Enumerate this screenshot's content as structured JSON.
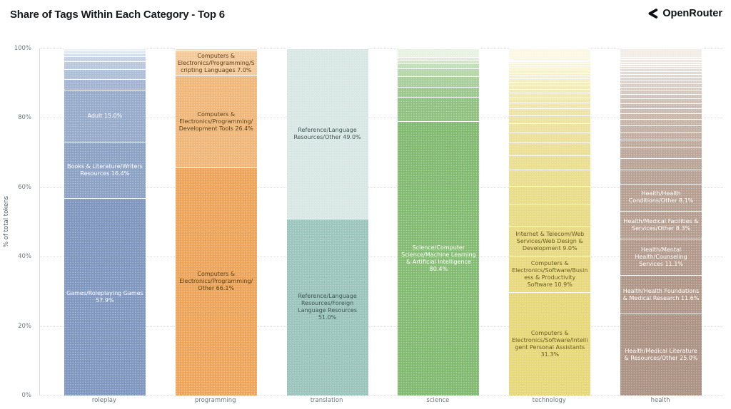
{
  "header": {
    "title": "Share of Tags Within Each Category - Top 6",
    "brand": "OpenRouter"
  },
  "chart_data": {
    "type": "bar",
    "stacked": true,
    "orientation": "vertical",
    "title": "Share of Tags Within Each Category - Top 6",
    "xlabel": "",
    "ylabel": "% of total tokens",
    "ylim": [
      0,
      100
    ],
    "grid": "horizontal dotted at 20% intervals",
    "legend_position": "none (labels drawn inside segments)",
    "yticks": [
      {
        "label": "0%",
        "value": 0
      },
      {
        "label": "20%",
        "value": 20
      },
      {
        "label": "40%",
        "value": 40
      },
      {
        "label": "60%",
        "value": 60
      },
      {
        "label": "80%",
        "value": 80
      },
      {
        "label": "100%",
        "value": 100
      }
    ],
    "categories": [
      "roleplay",
      "programming",
      "translation",
      "science",
      "technology",
      "health"
    ],
    "bars": [
      {
        "category": "roleplay",
        "base_color": "#8098BF",
        "top_color": "#E9EFF7",
        "label_text_color": "#FFFFFF",
        "segments_bottom_to_top": [
          {
            "label": "Games/Roleplaying Games",
            "value": 57.9,
            "display": "Games/Roleplaying Games 57.9%"
          },
          {
            "label": "Books & Literature/Writers Resources",
            "value": 16.4,
            "display": "Books & Literature/Writers Resources 16.4%"
          },
          {
            "label": "Adult",
            "value": 15.0,
            "display": "Adult 15.0%"
          },
          {
            "value": 3.0
          },
          {
            "value": 2.7
          },
          {
            "value": 2.0
          },
          {
            "value": 1.4
          },
          {
            "value": 0.6
          },
          {
            "value": 0.5
          },
          {
            "value": 0.5
          }
        ]
      },
      {
        "category": "programming",
        "base_color": "#EDA55C",
        "top_color": "#F7DBB9",
        "label_text_color": "#5C4318",
        "segments_bottom_to_top": [
          {
            "label": "Computers & Electronics/Programming/Other",
            "value": 66.1,
            "display": "Computers & Electronics/Programming/Other 66.1%"
          },
          {
            "label": "Computers & Electronics/Programming/Development Tools",
            "value": 26.4,
            "display": "Computers & Electronics/Programming/Development Tools 26.4%"
          },
          {
            "label": "Computers & Electronics/Programming/Scripting Languages",
            "value": 7.0,
            "display": "Computers & Electronics/Programming/Scripting Languages 7.0%"
          },
          {
            "value": 0.5
          }
        ]
      },
      {
        "category": "translation",
        "base_color": "#9CC5BD",
        "top_color": "#D9E8E5",
        "label_text_color": "#3E5753",
        "segments_bottom_to_top": [
          {
            "label": "Reference/Language Resources/Foreign Language Resources",
            "value": 51.0,
            "display": "Reference/Language Resources/Foreign Language Resources 51.0%"
          },
          {
            "label": "Reference/Language Resources/Other",
            "value": 49.0,
            "display": "Reference/Language Resources/Other 49.0%"
          }
        ]
      },
      {
        "category": "science",
        "base_color": "#83BA72",
        "top_color": "#E8F2E3",
        "label_text_color": "#FFFFFF",
        "segments_bottom_to_top": [
          {
            "label": "Science/Computer Science/Machine Learning & Artificial Intelligence",
            "value": 80.4,
            "display": "Science/Computer Science/Machine Learning & Artificial Intelligence 80.4%"
          },
          {
            "value": 6.8
          },
          {
            "value": 2.7
          },
          {
            "value": 2.9
          },
          {
            "value": 2.2
          },
          {
            "value": 1.3
          },
          {
            "value": 0.7
          },
          {
            "value": 0.7
          },
          {
            "value": 2.3
          }
        ]
      },
      {
        "category": "technology",
        "base_color": "#E7D87A",
        "top_color": "#FBF8E6",
        "label_text_color": "#6A5D20",
        "segments_bottom_to_top": [
          {
            "label": "Computers & Electronics/Software/Intelligent Personal Assistants",
            "value": 31.3,
            "display": "Computers & Electronics/Software/Intelligent Personal Assistants 31.3%"
          },
          {
            "label": "Computers & Electronics/Software/Business & Productivity Software",
            "value": 10.9,
            "display": "Computers & Electronics/Software/Business & Productivity Software 10.9%"
          },
          {
            "label": "Internet & Telecom/Web Services/Web Design & Development",
            "value": 9.0,
            "display": "Internet & Telecom/Web Services/Web Design & Development 9.0%"
          },
          {
            "value": 6.3
          },
          {
            "value": 5.5
          },
          {
            "value": 4.8
          },
          {
            "value": 4.2
          },
          {
            "value": 3.6
          },
          {
            "value": 2.9
          },
          {
            "value": 2.5
          },
          {
            "value": 2.2
          },
          {
            "value": 1.9
          },
          {
            "value": 1.6
          },
          {
            "value": 1.4
          },
          {
            "value": 1.2
          },
          {
            "value": 1.0
          },
          {
            "value": 0.9
          },
          {
            "value": 0.8
          },
          {
            "value": 0.7
          },
          {
            "value": 0.7
          },
          {
            "value": 0.6
          },
          {
            "value": 0.6
          },
          {
            "value": 0.5
          },
          {
            "value": 0.5
          },
          {
            "value": 0.4
          },
          {
            "value": 0.4
          },
          {
            "value": 0.4
          },
          {
            "value": 3.2
          }
        ]
      },
      {
        "category": "health",
        "base_color": "#AD9384",
        "top_color": "#F2EDE7",
        "label_text_color": "#FFFFFF",
        "segments_bottom_to_top": [
          {
            "label": "Health/Medical Literature & Resources/Other",
            "value": 25.0,
            "display": "Health/Medical Literature & Resources/Other 25.0%"
          },
          {
            "label": "Health/Health Foundations & Medical Research",
            "value": 11.6,
            "display": "Health/Health Foundations & Medical Research 11.6%"
          },
          {
            "label": "Health/Mental Health/Counseling Services",
            "value": 11.1,
            "display": "Health/Mental Health/Counseling Services 11.1%"
          },
          {
            "label": "Health/Medical Facilities & Services/Other",
            "value": 8.3,
            "display": "Health/Medical Facilities & Services/Other 8.3%"
          },
          {
            "label": "Health/Health Conditions/Other",
            "value": 8.1,
            "display": "Health/Health Conditions/Other 8.1%"
          },
          {
            "value": 4.0
          },
          {
            "value": 3.4
          },
          {
            "value": 3.0
          },
          {
            "value": 2.3
          },
          {
            "value": 2.1
          },
          {
            "value": 1.9
          },
          {
            "value": 1.7
          },
          {
            "value": 1.5
          },
          {
            "value": 1.4
          },
          {
            "value": 1.3
          },
          {
            "value": 1.2
          },
          {
            "value": 1.1
          },
          {
            "value": 1.0
          },
          {
            "value": 0.9
          },
          {
            "value": 0.8
          },
          {
            "value": 0.8
          },
          {
            "value": 0.7
          },
          {
            "value": 0.7
          },
          {
            "value": 0.6
          },
          {
            "value": 0.6
          },
          {
            "value": 0.5
          },
          {
            "value": 0.5
          },
          {
            "value": 0.5
          },
          {
            "value": 0.5
          },
          {
            "value": 0.4
          },
          {
            "value": 2.5
          }
        ]
      }
    ]
  }
}
